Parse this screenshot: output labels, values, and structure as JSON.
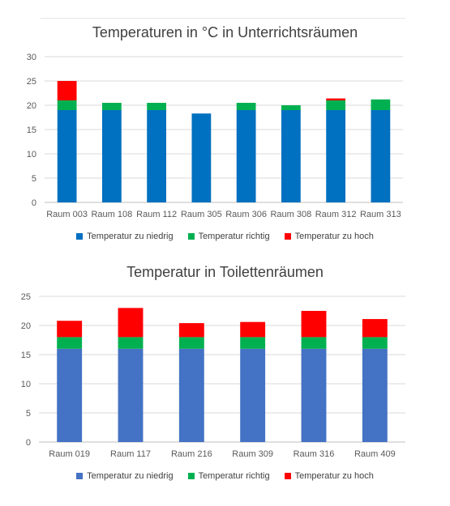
{
  "chart_data": [
    {
      "type": "bar",
      "stacked": true,
      "title": "Temperaturen in °C in Unterrichtsräumen",
      "categories": [
        "Raum 003",
        "Raum 108",
        "Raum 112",
        "Raum 305",
        "Raum 306",
        "Raum 308",
        "Raum 312",
        "Raum 313"
      ],
      "series": [
        {
          "name": "Temperatur zu niedrig",
          "color": "#0070c0",
          "values": [
            19,
            19,
            19,
            18.3,
            19,
            19,
            19,
            19
          ]
        },
        {
          "name": "Temperatur richtig",
          "color": "#00b050",
          "values": [
            2,
            1.5,
            1.5,
            0,
            1.5,
            1,
            2,
            2.2
          ]
        },
        {
          "name": "Temperatur zu hoch",
          "color": "#ff0000",
          "values": [
            4,
            0,
            0,
            0,
            0,
            0,
            0.4,
            0
          ]
        }
      ],
      "ylim": [
        0,
        30
      ],
      "yticks": [
        "0",
        "5",
        "10",
        "15",
        "20",
        "25",
        "30"
      ],
      "grid": true,
      "legend": "bottom"
    },
    {
      "type": "bar",
      "stacked": true,
      "title": "Temperatur in Toilettenräumen",
      "categories": [
        "Raum 019",
        "Raum 117",
        "Raum 216",
        "Raum 309",
        "Raum 316",
        "Raum 409"
      ],
      "series": [
        {
          "name": "Temperatur zu niedrig",
          "color": "#4472c4",
          "values": [
            16,
            16,
            16,
            16,
            16,
            16
          ]
        },
        {
          "name": "Temperatur richtig",
          "color": "#00b050",
          "values": [
            2,
            2,
            2,
            2,
            2,
            2
          ]
        },
        {
          "name": "Temperatur zu hoch",
          "color": "#ff0000",
          "values": [
            2.8,
            5,
            2.4,
            2.6,
            4.5,
            3.1
          ]
        }
      ],
      "ylim": [
        0,
        25
      ],
      "yticks": [
        "0",
        "5",
        "10",
        "15",
        "20",
        "25"
      ],
      "grid": true,
      "legend": "bottom"
    }
  ]
}
